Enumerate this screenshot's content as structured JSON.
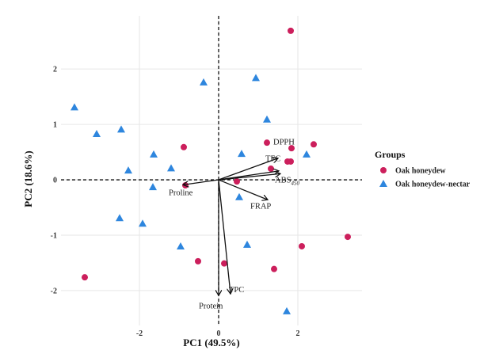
{
  "chart_data": {
    "type": "scatter",
    "subtype": "pca-biplot",
    "title": "",
    "xlabel": "PC1 (49.5%)",
    "ylabel": "PC2 (18.6%)",
    "xlim": [
      -3.98,
      3.62
    ],
    "ylim": [
      -2.63,
      2.96
    ],
    "xticks": [
      -2,
      0,
      2
    ],
    "yticks": [
      -2,
      -1,
      0,
      1,
      2
    ],
    "xtick_labels": [
      "-2",
      "0",
      "2"
    ],
    "ytick_labels": [
      "-2",
      "-1",
      "0",
      "1",
      "2"
    ],
    "grid": true,
    "reference_lines": {
      "x": 0,
      "y": 0,
      "style": "dashed"
    },
    "legend": {
      "title": "Groups",
      "position": "right",
      "entries": [
        {
          "label": "Oak honeydew",
          "marker": "circle",
          "color": "#CC1F5C"
        },
        {
          "label": "Oak honeydew-nectar",
          "marker": "triangle",
          "color": "#2E86DE"
        }
      ]
    },
    "series": [
      {
        "name": "Oak honeydew",
        "marker": "circle",
        "color": "#CC1F5C",
        "points": [
          [
            1.82,
            2.69
          ],
          [
            1.22,
            0.67
          ],
          [
            1.84,
            0.57
          ],
          [
            2.4,
            0.64
          ],
          [
            1.74,
            0.33
          ],
          [
            1.82,
            0.33
          ],
          [
            1.32,
            0.2
          ],
          [
            0.46,
            -0.03
          ],
          [
            -0.88,
            0.59
          ],
          [
            -0.84,
            -0.1
          ],
          [
            -0.52,
            -1.47
          ],
          [
            -3.38,
            -1.76
          ],
          [
            2.1,
            -1.2
          ],
          [
            3.26,
            -1.03
          ],
          [
            0.14,
            -1.51
          ],
          [
            1.4,
            -1.61
          ]
        ]
      },
      {
        "name": "Oak honeydew-nectar",
        "marker": "triangle",
        "color": "#2E86DE",
        "points": [
          [
            -3.64,
            1.31
          ],
          [
            -3.08,
            0.83
          ],
          [
            -2.46,
            0.91
          ],
          [
            -0.38,
            1.76
          ],
          [
            0.94,
            1.84
          ],
          [
            1.22,
            1.09
          ],
          [
            0.58,
            0.47
          ],
          [
            2.22,
            0.46
          ],
          [
            -1.64,
            0.46
          ],
          [
            -1.2,
            0.21
          ],
          [
            -2.28,
            0.17
          ],
          [
            -1.66,
            -0.13
          ],
          [
            -2.5,
            -0.69
          ],
          [
            -1.92,
            -0.79
          ],
          [
            -0.96,
            -1.2
          ],
          [
            0.52,
            -0.31
          ],
          [
            0.72,
            -1.17
          ],
          [
            1.72,
            -2.37
          ]
        ]
      }
    ],
    "loadings": [
      {
        "name": "DPPH",
        "label": "DPPH",
        "sub": "",
        "x": 1.5,
        "y": 0.39,
        "lx": 1.38,
        "ly": 0.64,
        "anchor": "start"
      },
      {
        "name": "TFC",
        "label": "TFC",
        "sub": "",
        "x": 1.52,
        "y": 0.16,
        "lx": 1.18,
        "ly": 0.34,
        "anchor": "start"
      },
      {
        "name": "ABS450",
        "label": "ABS",
        "sub": "450",
        "x": 1.56,
        "y": 0.11,
        "lx": 1.42,
        "ly": -0.05,
        "anchor": "start"
      },
      {
        "name": "FRAP",
        "label": "FRAP",
        "sub": "",
        "x": 1.24,
        "y": -0.36,
        "lx": 0.8,
        "ly": -0.52,
        "anchor": "start"
      },
      {
        "name": "Proline",
        "label": "Proline",
        "sub": "",
        "x": -0.9,
        "y": -0.09,
        "lx": -1.26,
        "ly": -0.28,
        "anchor": "start"
      },
      {
        "name": "TPC",
        "label": "TPC",
        "sub": "",
        "x": 0.3,
        "y": -2.06,
        "lx": 0.26,
        "ly": -2.03,
        "anchor": "start"
      },
      {
        "name": "Protein",
        "label": "Protein",
        "sub": "",
        "x": 0.0,
        "y": -2.09,
        "lx": -0.5,
        "ly": -2.32,
        "anchor": "start"
      }
    ]
  }
}
